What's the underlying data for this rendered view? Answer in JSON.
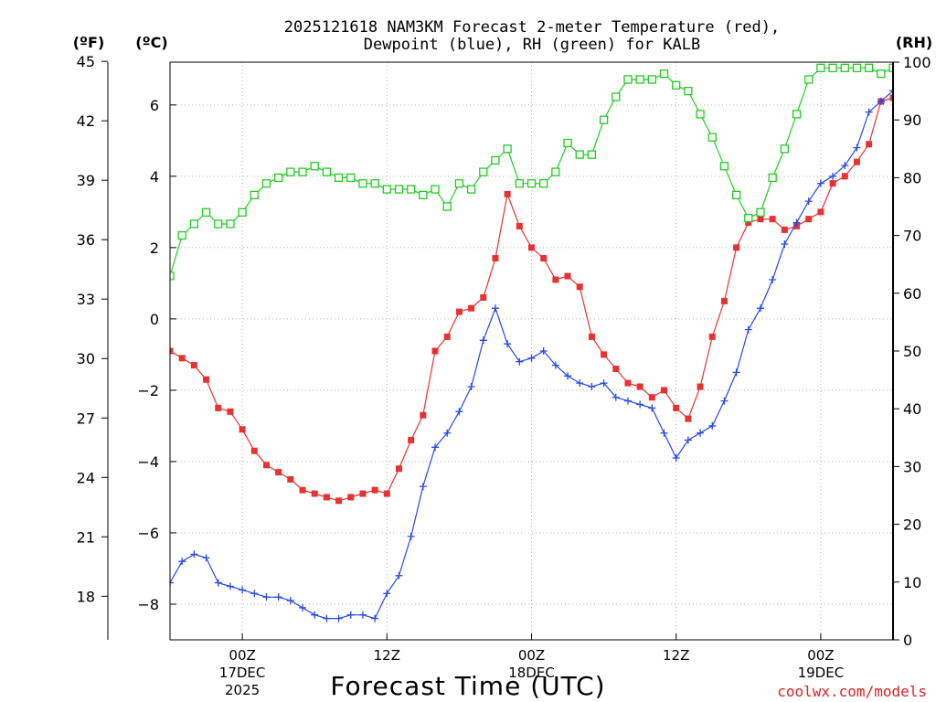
{
  "chart_data": {
    "type": "line",
    "title_line1": "2025121618 NAM3KM Forecast 2-meter Temperature (red),",
    "title_line2": "Dewpoint (blue), RH (green) for KALB",
    "units": {
      "fahrenheit": "(ºF)",
      "celsius": "(ºC)",
      "rh": "(RH)"
    },
    "x_title": "Forecast Time (UTC)",
    "credit": "coolwx.com/models",
    "x_range_hours": [
      -6,
      54
    ],
    "x_ticks": [
      {
        "hour": 0,
        "label1": "00Z",
        "label2": "17DEC",
        "label3": "2025"
      },
      {
        "hour": 12,
        "label1": "12Z",
        "label2": "",
        "label3": ""
      },
      {
        "hour": 24,
        "label1": "00Z",
        "label2": "18DEC",
        "label3": ""
      },
      {
        "hour": 36,
        "label1": "12Z",
        "label2": "",
        "label3": ""
      },
      {
        "hour": 48,
        "label1": "00Z",
        "label2": "19DEC",
        "label3": ""
      }
    ],
    "y_celsius": {
      "range": [
        -9,
        7.2
      ],
      "ticks": [
        -8,
        -6,
        -4,
        -2,
        0,
        2,
        4,
        6
      ],
      "labels": [
        "−8",
        "−6",
        "−4",
        "−2",
        "0",
        "2",
        "4",
        "6"
      ]
    },
    "y_fahrenheit": {
      "ticks": [
        18,
        21,
        24,
        27,
        30,
        33,
        36,
        39,
        42,
        45
      ],
      "labels": [
        "18",
        "21",
        "24",
        "27",
        "30",
        "33",
        "36",
        "39",
        "42",
        "45"
      ]
    },
    "y_rh": {
      "range": [
        0,
        100
      ],
      "ticks": [
        0,
        10,
        20,
        30,
        40,
        50,
        60,
        70,
        80,
        90,
        100
      ],
      "labels": [
        "0",
        "10",
        "20",
        "30",
        "40",
        "50",
        "60",
        "70",
        "80",
        "90",
        "100"
      ]
    },
    "series": [
      {
        "name": "2-meter Temperature",
        "unit": "C",
        "color": "#e83232",
        "marker": "filled-square",
        "hours": [
          -6,
          -5,
          -4,
          -3,
          -2,
          -1,
          0,
          1,
          2,
          3,
          4,
          5,
          6,
          7,
          8,
          9,
          10,
          11,
          12,
          13,
          14,
          15,
          16,
          17,
          18,
          19,
          20,
          21,
          22,
          23,
          24,
          25,
          26,
          27,
          28,
          29,
          30,
          31,
          32,
          33,
          34,
          35,
          36,
          37,
          38,
          39,
          40,
          41,
          42,
          43,
          44,
          45,
          46,
          47,
          48,
          49,
          50,
          51,
          52,
          53,
          54
        ],
        "values": [
          -0.9,
          -1.1,
          -1.3,
          -1.7,
          -2.5,
          -2.6,
          -3.1,
          -3.7,
          -4.1,
          -4.3,
          -4.5,
          -4.8,
          -4.9,
          -5.0,
          -5.1,
          -5.0,
          -4.9,
          -4.8,
          -4.9,
          -4.2,
          -3.4,
          -2.7,
          -0.9,
          -0.5,
          0.2,
          0.3,
          0.6,
          1.7,
          3.5,
          2.6,
          2.0,
          1.7,
          1.1,
          1.2,
          0.9,
          -0.5,
          -1.0,
          -1.4,
          -1.8,
          -1.9,
          -2.2,
          -2.0,
          -2.5,
          -2.8,
          -1.9,
          -0.5,
          0.5,
          2.0,
          2.7,
          2.8,
          2.8,
          2.5,
          2.6,
          2.8,
          3.0,
          3.8,
          4.0,
          4.4,
          4.9,
          6.1,
          6.2
        ]
      },
      {
        "name": "Dewpoint",
        "unit": "C",
        "color": "#2a48e8",
        "marker": "plus",
        "hours": [
          -6,
          -5,
          -4,
          -3,
          -2,
          -1,
          0,
          1,
          2,
          3,
          4,
          5,
          6,
          7,
          8,
          9,
          10,
          11,
          12,
          13,
          14,
          15,
          16,
          17,
          18,
          19,
          20,
          21,
          22,
          23,
          24,
          25,
          26,
          27,
          28,
          29,
          30,
          31,
          32,
          33,
          34,
          35,
          36,
          37,
          38,
          39,
          40,
          41,
          42,
          43,
          44,
          45,
          46,
          47,
          48,
          49,
          50,
          51,
          52,
          53,
          54
        ],
        "values": [
          -7.4,
          -6.8,
          -6.6,
          -6.7,
          -7.4,
          -7.5,
          -7.6,
          -7.7,
          -7.8,
          -7.8,
          -7.9,
          -8.1,
          -8.3,
          -8.4,
          -8.4,
          -8.3,
          -8.3,
          -8.4,
          -7.7,
          -7.2,
          -6.1,
          -4.7,
          -3.6,
          -3.2,
          -2.6,
          -1.9,
          -0.6,
          0.3,
          -0.7,
          -1.2,
          -1.1,
          -0.9,
          -1.3,
          -1.6,
          -1.8,
          -1.9,
          -1.8,
          -2.2,
          -2.3,
          -2.4,
          -2.5,
          -3.2,
          -3.9,
          -3.4,
          -3.2,
          -3.0,
          -2.3,
          -1.5,
          -0.3,
          0.3,
          1.1,
          2.1,
          2.7,
          3.3,
          3.8,
          4.0,
          4.3,
          4.8,
          5.8,
          6.1,
          6.4
        ]
      },
      {
        "name": "Relative Humidity",
        "unit": "%",
        "color": "#22cc22",
        "marker": "hollow-square",
        "hours": [
          -6,
          -5,
          -4,
          -3,
          -2,
          -1,
          0,
          1,
          2,
          3,
          4,
          5,
          6,
          7,
          8,
          9,
          10,
          11,
          12,
          13,
          14,
          15,
          16,
          17,
          18,
          19,
          20,
          21,
          22,
          23,
          24,
          25,
          26,
          27,
          28,
          29,
          30,
          31,
          32,
          33,
          34,
          35,
          36,
          37,
          38,
          39,
          40,
          41,
          42,
          43,
          44,
          45,
          46,
          47,
          48,
          49,
          50,
          51,
          52,
          53,
          54
        ],
        "values": [
          63,
          70,
          72,
          74,
          72,
          72,
          74,
          77,
          79,
          80,
          81,
          81,
          82,
          81,
          80,
          80,
          79,
          79,
          78,
          78,
          78,
          77,
          78,
          75,
          79,
          78,
          81,
          83,
          85,
          79,
          79,
          79,
          81,
          86,
          84,
          84,
          90,
          94,
          97,
          97,
          97,
          98,
          96,
          95,
          91,
          87,
          82,
          77,
          73,
          74,
          80,
          85,
          91,
          97,
          99,
          99,
          99,
          99,
          99,
          98,
          99
        ]
      }
    ]
  }
}
